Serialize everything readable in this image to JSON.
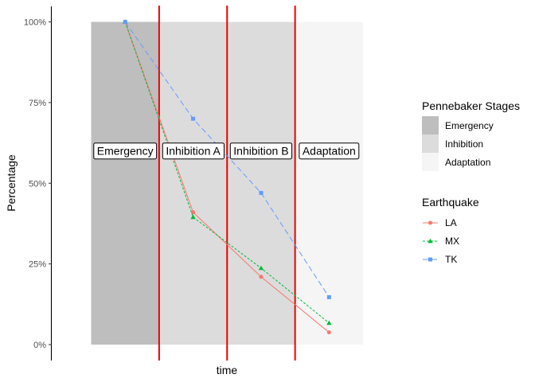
{
  "chart_data": {
    "type": "line",
    "xlabel": "time",
    "ylabel": "Percentage",
    "ylim": [
      0,
      100
    ],
    "y_ticks": [
      "0%",
      "25%",
      "50%",
      "75%",
      "100%"
    ],
    "x_points": [
      1,
      2,
      3,
      4
    ],
    "xlim": [
      0.5,
      4.5
    ],
    "stages": [
      {
        "name": "Emergency",
        "from": 0.5,
        "to": 1.5,
        "color": "#bebebe"
      },
      {
        "name": "Inhibition",
        "from": 1.5,
        "to": 3.5,
        "color": "#dcdcdc"
      },
      {
        "name": "Adaptation",
        "from": 3.5,
        "to": 4.5,
        "color": "#f5f5f5"
      }
    ],
    "stage_labels": [
      {
        "text": "Emergency",
        "x": 1,
        "y": 60
      },
      {
        "text": "Inhibition A",
        "x": 2,
        "y": 60
      },
      {
        "text": "Inhibition B",
        "x": 3,
        "y": 60
      },
      {
        "text": "Adaptation",
        "x": 4,
        "y": 60
      }
    ],
    "vlines": [
      1.5,
      2.5,
      3.5
    ],
    "vline_color": "#ee0000",
    "series": [
      {
        "name": "LA",
        "values": [
          100,
          41,
          21,
          3.8
        ],
        "color": "#f8766d",
        "dash": "",
        "marker": "circle"
      },
      {
        "name": "MX",
        "values": [
          100,
          39.5,
          23.7,
          6.7
        ],
        "color": "#00ba38",
        "dash": "3,2",
        "marker": "triangle"
      },
      {
        "name": "TK",
        "values": [
          100,
          70,
          47,
          14.7
        ],
        "color": "#619cff",
        "dash": "7,4",
        "marker": "square"
      }
    ],
    "legends": {
      "stages_title": "Pennebaker Stages",
      "stages": [
        "Emergency",
        "Inhibition",
        "Adaptation"
      ],
      "series_title": "Earthquake",
      "series": [
        "LA",
        "MX",
        "TK"
      ]
    },
    "grid": false
  }
}
